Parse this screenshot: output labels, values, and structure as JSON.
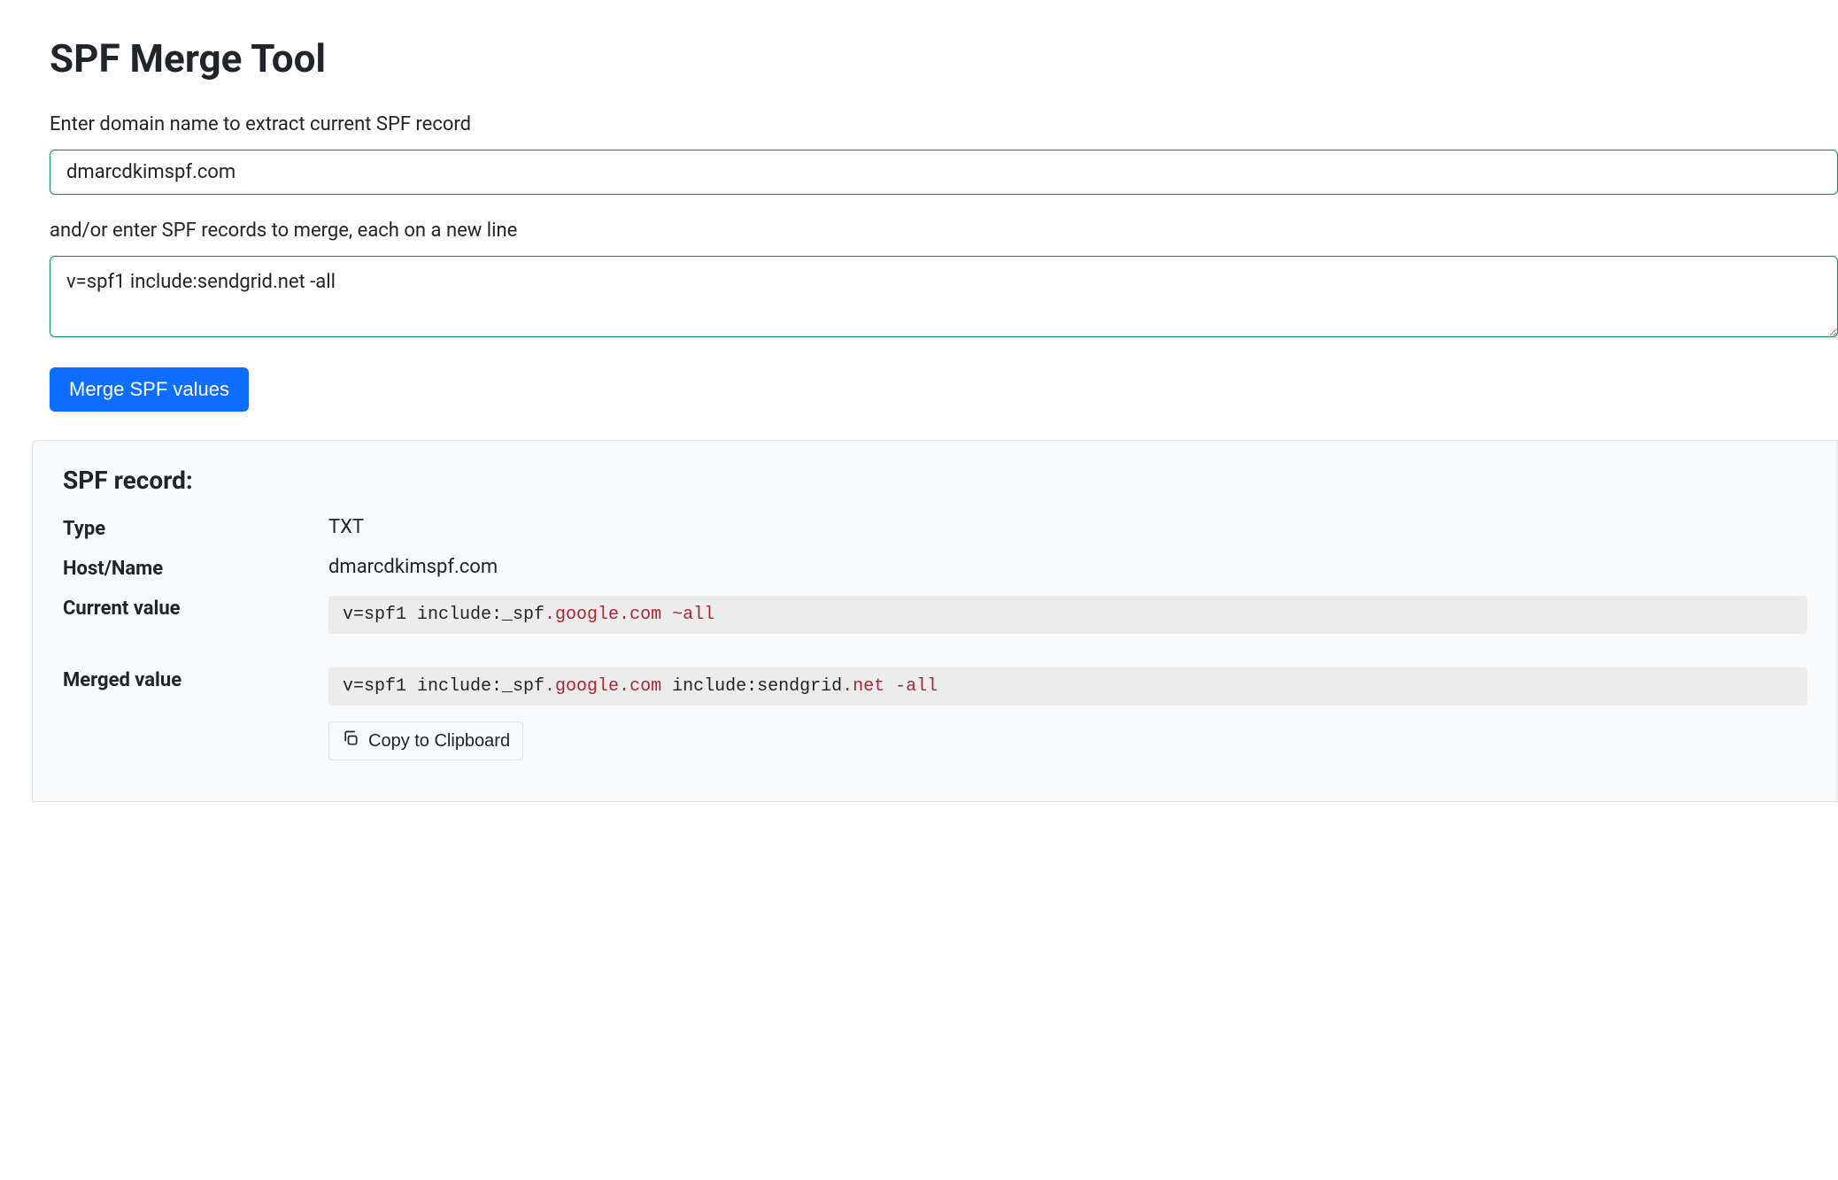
{
  "title": "SPF Merge Tool",
  "domain_field": {
    "label": "Enter domain name to extract current SPF record",
    "value": "dmarcdkimspf.com"
  },
  "records_field": {
    "label": "and/or enter SPF records to merge, each on a new line",
    "value": "v=spf1 include:sendgrid.net -all"
  },
  "merge_button_label": "Merge SPF values",
  "result_card": {
    "heading": "SPF record:",
    "rows": {
      "type": {
        "label": "Type",
        "value": "TXT"
      },
      "host": {
        "label": "Host/Name",
        "value": "dmarcdkimspf.com"
      },
      "current": {
        "label": "Current value",
        "code_tokens": [
          {
            "t": "v=spf1 include:_spf",
            "c": "plain"
          },
          {
            "t": ".google.com",
            "c": "dot"
          },
          {
            "t": " ",
            "c": "plain"
          },
          {
            "t": "~all",
            "c": "kw"
          }
        ]
      },
      "merged": {
        "label": "Merged value",
        "code_tokens": [
          {
            "t": "v=spf1 include:_spf",
            "c": "plain"
          },
          {
            "t": ".google.com",
            "c": "dot"
          },
          {
            "t": " include:sendgrid",
            "c": "plain"
          },
          {
            "t": ".net",
            "c": "dot"
          },
          {
            "t": " ",
            "c": "plain"
          },
          {
            "t": "-all",
            "c": "kw"
          }
        ]
      }
    },
    "copy_button_label": "Copy to Clipboard"
  },
  "colors": {
    "input_border": "#198754",
    "primary_button": "#0d6efd",
    "card_bg": "#f8f9fa",
    "card_border": "#dee2e6",
    "code_bg": "#ececec",
    "highlight_text": "#a52834"
  }
}
